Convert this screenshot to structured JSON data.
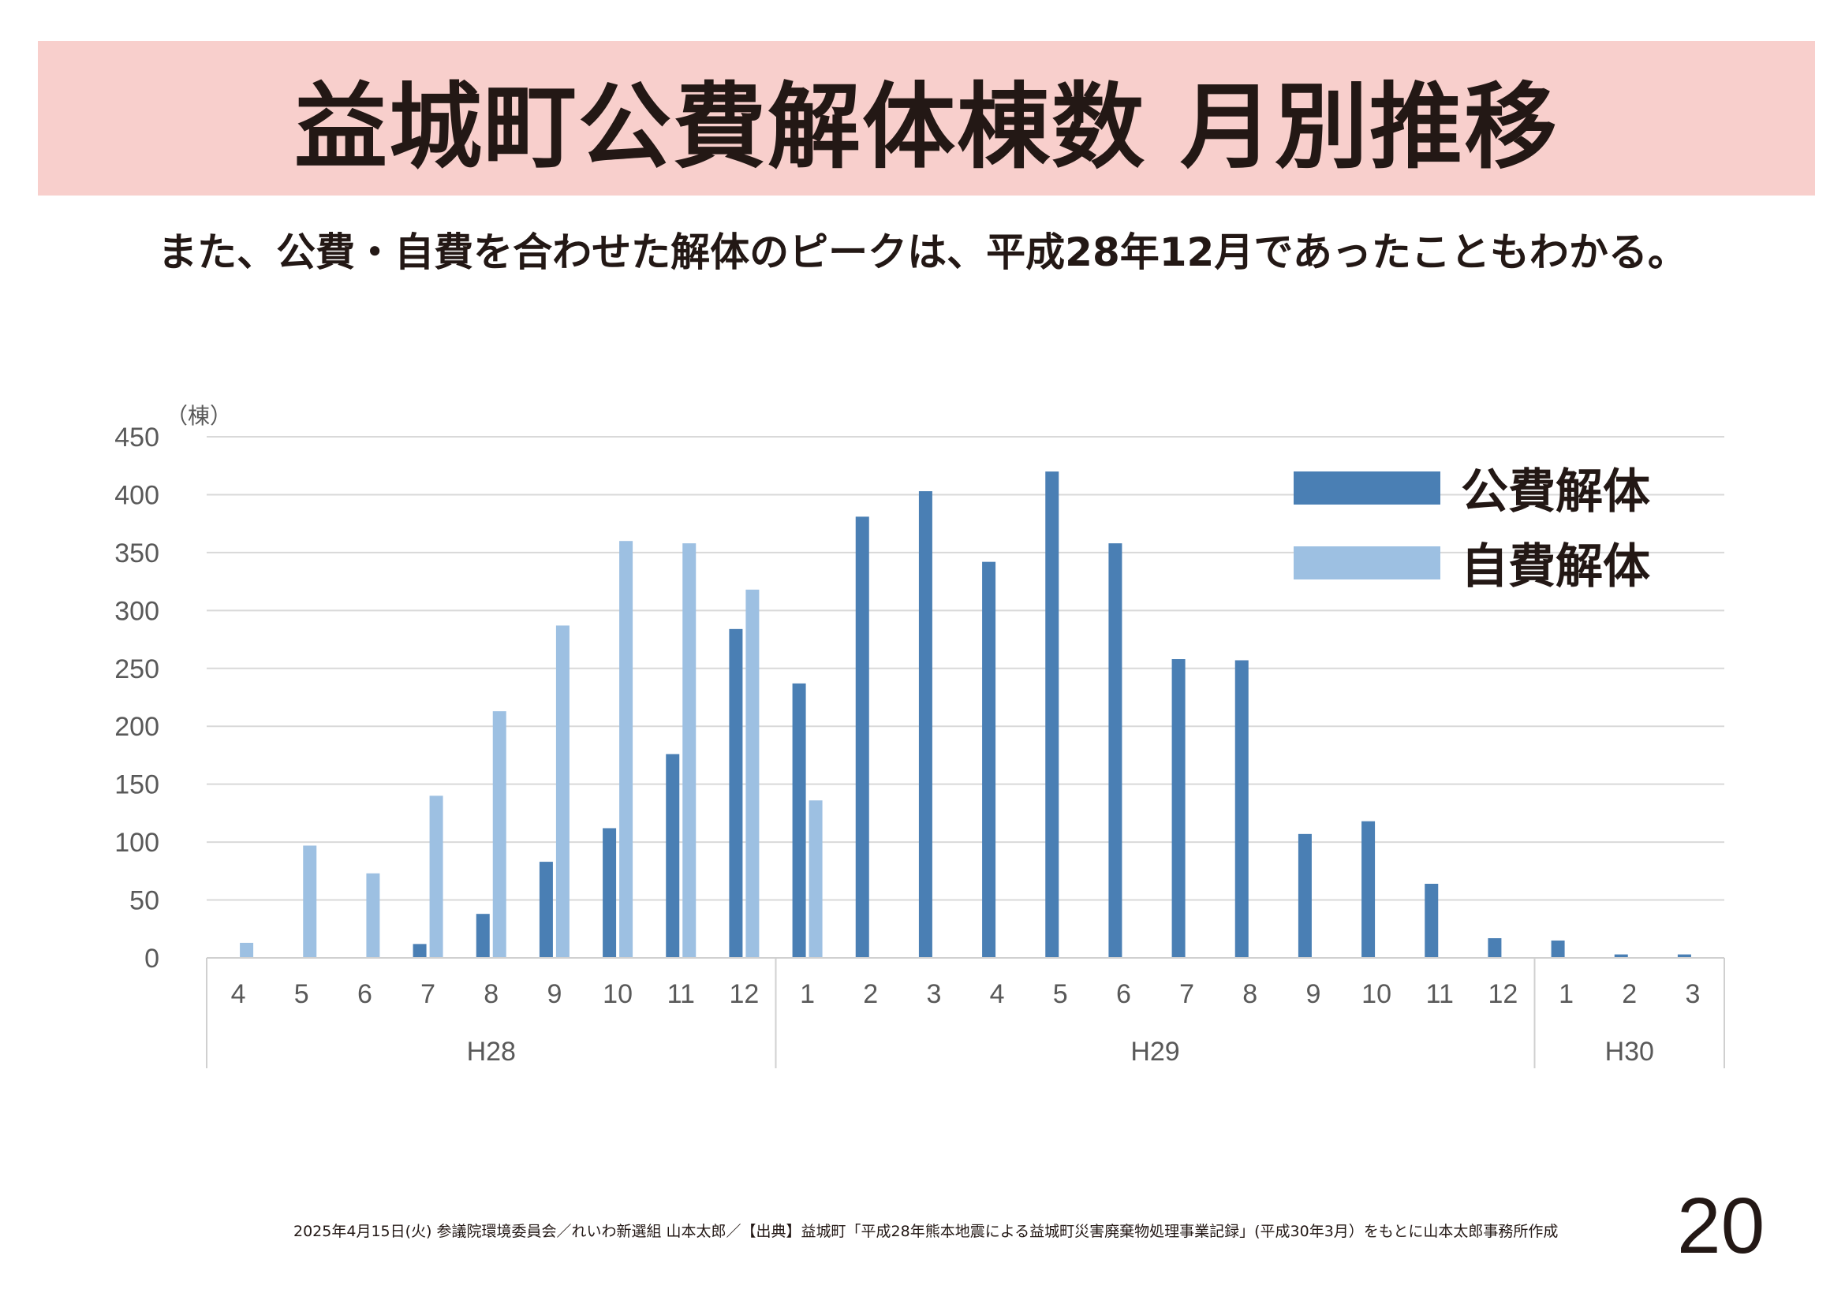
{
  "title": "益城町公費解体棟数 月別推移",
  "subtitle": "また、公費・自費を合わせた解体のピークは、平成28年12月であったこともわかる。",
  "footer": "2025年4月15日(火) 参議院環境委員会／れいわ新選組 山本太郎／【出典】益城町「平成28年熊本地震による益城町災害廃棄物処理事業記録」(平成30年3月）をもとに山本太郎事務所作成",
  "page_number": "20",
  "colors": {
    "title_band": "#f8cfcc",
    "public": "#4a7fb4",
    "self": "#9dc0e2",
    "grid": "#d9d9d9",
    "axis_text": "#595959"
  },
  "chart_data": {
    "type": "bar",
    "title": "",
    "ylabel": "（棟）",
    "ylim": [
      0,
      450
    ],
    "yticks": [
      0,
      50,
      100,
      150,
      200,
      250,
      300,
      350,
      400,
      450
    ],
    "grid": true,
    "legend_position": "top-right",
    "categories": [
      "4",
      "5",
      "6",
      "7",
      "8",
      "9",
      "10",
      "11",
      "12",
      "1",
      "2",
      "3",
      "4",
      "5",
      "6",
      "7",
      "8",
      "9",
      "10",
      "11",
      "12",
      "1",
      "2",
      "3"
    ],
    "year_groups": [
      {
        "label": "H28",
        "count": 9
      },
      {
        "label": "H29",
        "count": 12
      },
      {
        "label": "H30",
        "count": 3
      }
    ],
    "series": [
      {
        "name": "公費解体",
        "values": [
          0,
          0,
          0,
          12,
          38,
          83,
          112,
          176,
          284,
          237,
          381,
          403,
          342,
          420,
          358,
          258,
          257,
          107,
          118,
          64,
          17,
          15,
          3,
          3
        ]
      },
      {
        "name": "自費解体",
        "values": [
          13,
          97,
          73,
          140,
          213,
          287,
          360,
          358,
          318,
          136,
          0,
          0,
          0,
          0,
          0,
          0,
          0,
          0,
          0,
          0,
          0,
          0,
          0,
          0
        ]
      }
    ]
  }
}
